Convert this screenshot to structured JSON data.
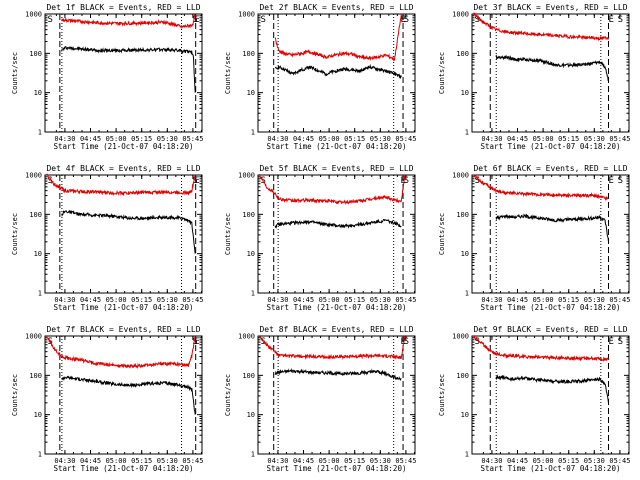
{
  "figure": {
    "x_axis_label": "Start Time (21-Oct-07 04:18:20)",
    "y_axis_label": "Counts/sec",
    "x_tick_labels": [
      "04:30",
      "04:45",
      "05:00",
      "05:15",
      "05:30",
      "05:45"
    ],
    "y_tick_labels": [
      "1",
      "10",
      "100",
      "1000"
    ],
    "event_marks": {
      "S": "S",
      "E": "E"
    },
    "colors": {
      "events": "#000000",
      "lld": "#e00000",
      "markers": "#000000"
    }
  },
  "chart_data": [
    {
      "type": "line",
      "title": "Det 1f BLACK = Events, RED = LLD",
      "xlabel": "Start Time (21-Oct-07 04:18:20)",
      "ylabel": "Counts/sec",
      "x_unit": "minutes after 04:18:20",
      "xlim": [
        0,
        92
      ],
      "ylim": [
        1,
        1000
      ],
      "y_scale": "log",
      "markers": {
        "dashed": [
          8.7,
          88.3
        ],
        "dotted": [
          9.9,
          80.0
        ],
        "S_at": 1.5,
        "E_at": 87.5,
        "S2_at": 91
      },
      "series": [
        {
          "name": "Events",
          "color": "#000000",
          "x": [
            9.8,
            12,
            20,
            30,
            40,
            50,
            60,
            70,
            77,
            80,
            84,
            86,
            87,
            88
          ],
          "y": [
            120,
            140,
            130,
            120,
            118,
            120,
            122,
            125,
            120,
            115,
            110,
            105,
            80,
            10
          ]
        },
        {
          "name": "LLD",
          "color": "#e00000",
          "x": [
            9.8,
            12,
            20,
            30,
            40,
            50,
            60,
            70,
            77,
            80,
            84,
            86,
            87,
            88
          ],
          "y": [
            700,
            700,
            650,
            600,
            580,
            580,
            600,
            620,
            520,
            470,
            500,
            520,
            600,
            1000
          ]
        }
      ]
    },
    {
      "type": "line",
      "title": "Det 2f BLACK = Events, RED = LLD",
      "xlabel": "Start Time (21-Oct-07 04:18:20)",
      "ylabel": "Counts/sec",
      "x_unit": "minutes after 04:18:20",
      "xlim": [
        0,
        92
      ],
      "ylim": [
        1,
        1000
      ],
      "y_scale": "log",
      "markers": {
        "dashed": [
          9.2,
          85.0
        ],
        "dotted": [
          11.8,
          79.5
        ],
        "S_at": 1.5,
        "E_at": 83.5,
        "S2_at": 90
      },
      "series": [
        {
          "name": "Events",
          "color": "#000000",
          "x": [
            10,
            12,
            15,
            20,
            30,
            40,
            45,
            50,
            55,
            60,
            65,
            70,
            75,
            80,
            84
          ],
          "y": [
            40,
            45,
            40,
            30,
            45,
            30,
            35,
            40,
            38,
            35,
            45,
            40,
            35,
            30,
            25
          ]
        },
        {
          "name": "LLD",
          "color": "#e00000",
          "x": [
            10,
            12,
            15,
            20,
            30,
            40,
            45,
            50,
            55,
            60,
            65,
            70,
            75,
            80,
            84
          ],
          "y": [
            250,
            120,
            100,
            90,
            110,
            80,
            90,
            100,
            95,
            80,
            75,
            80,
            90,
            70,
            1000
          ]
        }
      ]
    },
    {
      "type": "line",
      "title": "Det 3f BLACK = Events, RED = LLD",
      "xlabel": "Start Time (21-Oct-07 04:18:20)",
      "ylabel": "Counts/sec",
      "x_unit": "minutes after 04:18:20",
      "xlim": [
        0,
        92
      ],
      "ylim": [
        1,
        1000
      ],
      "y_scale": "log",
      "markers": {
        "dashed": [
          10.7,
          80.0
        ],
        "dotted": [
          14.2,
          75.5
        ],
        "S_at": 1.5,
        "E_at": 80,
        "S2_at": 90
      },
      "series": [
        {
          "name": "Events",
          "color": "#000000",
          "x": [
            14,
            20,
            25,
            30,
            40,
            50,
            60,
            70,
            75,
            78,
            80
          ],
          "y": [
            80,
            80,
            70,
            70,
            65,
            50,
            50,
            55,
            60,
            45,
            20
          ]
        },
        {
          "name": "LLD",
          "color": "#e00000",
          "x": [
            1,
            5,
            10,
            14,
            20,
            30,
            40,
            50,
            60,
            70,
            75,
            80
          ],
          "y": [
            1000,
            700,
            500,
            400,
            350,
            320,
            300,
            280,
            260,
            250,
            240,
            250
          ]
        }
      ]
    },
    {
      "type": "line",
      "title": "Det 4f BLACK = Events, RED = LLD",
      "xlabel": "Start Time (21-Oct-07 04:18:20)",
      "ylabel": "Counts/sec",
      "x_unit": "minutes after 04:18:20",
      "xlim": [
        0,
        92
      ],
      "ylim": [
        1,
        1000
      ],
      "y_scale": "log",
      "markers": {
        "dashed": [
          8.7,
          88.3
        ],
        "dotted": [
          9.9,
          80.0
        ],
        "S_at": 1.5,
        "E_at": 87.5,
        "S2_at": 91
      },
      "series": [
        {
          "name": "Events",
          "color": "#000000",
          "x": [
            9.8,
            12,
            20,
            30,
            40,
            50,
            60,
            70,
            80,
            84,
            86,
            88
          ],
          "y": [
            100,
            120,
            100,
            95,
            90,
            80,
            80,
            85,
            80,
            70,
            60,
            10
          ]
        },
        {
          "name": "LLD",
          "color": "#e00000",
          "x": [
            1,
            5,
            9.8,
            12,
            20,
            30,
            40,
            50,
            60,
            70,
            80,
            84,
            86,
            88
          ],
          "y": [
            1000,
            600,
            450,
            400,
            380,
            370,
            350,
            350,
            360,
            370,
            360,
            350,
            400,
            1000
          ]
        }
      ]
    },
    {
      "type": "line",
      "title": "Det 5f BLACK = Events, RED = LLD",
      "xlabel": "Start Time (21-Oct-07 04:18:20)",
      "ylabel": "Counts/sec",
      "x_unit": "minutes after 04:18:20",
      "xlim": [
        0,
        92
      ],
      "ylim": [
        1,
        1000
      ],
      "y_scale": "log",
      "markers": {
        "dashed": [
          9.2,
          85.0
        ],
        "dotted": [
          11.8,
          79.5
        ],
        "S_at": 1.5,
        "E_at": 83.5,
        "S2_at": 90
      },
      "series": [
        {
          "name": "Events",
          "color": "#000000",
          "x": [
            10,
            12,
            20,
            30,
            40,
            50,
            60,
            70,
            75,
            80,
            84
          ],
          "y": [
            50,
            55,
            60,
            65,
            55,
            50,
            55,
            65,
            70,
            60,
            50
          ]
        },
        {
          "name": "LLD",
          "color": "#e00000",
          "x": [
            1,
            5,
            10,
            12,
            20,
            30,
            40,
            50,
            60,
            70,
            75,
            80,
            84,
            86
          ],
          "y": [
            1000,
            500,
            350,
            250,
            220,
            230,
            220,
            200,
            220,
            260,
            270,
            230,
            220,
            1000
          ]
        }
      ]
    },
    {
      "type": "line",
      "title": "Det 6f BLACK = Events, RED = LLD",
      "xlabel": "Start Time (21-Oct-07 04:18:20)",
      "ylabel": "Counts/sec",
      "x_unit": "minutes after 04:18:20",
      "xlim": [
        0,
        92
      ],
      "ylim": [
        1,
        1000
      ],
      "y_scale": "log",
      "markers": {
        "dashed": [
          10.7,
          80.0
        ],
        "dotted": [
          14.2,
          75.5
        ],
        "S_at": 1.5,
        "E_at": 80,
        "S2_at": 90
      },
      "series": [
        {
          "name": "Events",
          "color": "#000000",
          "x": [
            14,
            20,
            25,
            30,
            40,
            50,
            60,
            70,
            75,
            78,
            80
          ],
          "y": [
            80,
            90,
            85,
            90,
            80,
            70,
            75,
            80,
            85,
            70,
            20
          ]
        },
        {
          "name": "LLD",
          "color": "#e00000",
          "x": [
            1,
            5,
            10,
            14,
            20,
            30,
            40,
            50,
            60,
            70,
            75,
            80
          ],
          "y": [
            1000,
            700,
            500,
            400,
            350,
            330,
            320,
            310,
            300,
            300,
            280,
            250
          ]
        }
      ]
    },
    {
      "type": "line",
      "title": "Det 7f BLACK = Events, RED = LLD",
      "xlabel": "Start Time (21-Oct-07 04:18:20)",
      "ylabel": "Counts/sec",
      "x_unit": "minutes after 04:18:20",
      "xlim": [
        0,
        92
      ],
      "ylim": [
        1,
        1000
      ],
      "y_scale": "log",
      "markers": {
        "dashed": [
          8.7,
          88.3
        ],
        "dotted": [
          9.9,
          80.0
        ],
        "S_at": 1.5,
        "E_at": 87.5,
        "S2_at": 91
      },
      "series": [
        {
          "name": "Events",
          "color": "#000000",
          "x": [
            9.8,
            12,
            20,
            30,
            40,
            50,
            60,
            70,
            80,
            84,
            86,
            88
          ],
          "y": [
            80,
            90,
            80,
            70,
            60,
            55,
            60,
            65,
            55,
            50,
            45,
            10
          ]
        },
        {
          "name": "LLD",
          "color": "#e00000",
          "x": [
            1,
            5,
            9.8,
            12,
            20,
            30,
            40,
            50,
            60,
            70,
            80,
            84,
            86,
            88
          ],
          "y": [
            1000,
            500,
            300,
            280,
            250,
            200,
            180,
            170,
            180,
            200,
            190,
            180,
            300,
            1000
          ]
        }
      ]
    },
    {
      "type": "line",
      "title": "Det 8f BLACK = Events, RED = LLD",
      "xlabel": "Start Time (21-Oct-07 04:18:20)",
      "ylabel": "Counts/sec",
      "x_unit": "minutes after 04:18:20",
      "xlim": [
        0,
        92
      ],
      "ylim": [
        1,
        1000
      ],
      "y_scale": "log",
      "markers": {
        "dashed": [
          9.2,
          85.0
        ],
        "dotted": [
          11.8,
          79.5
        ],
        "S_at": 1.5,
        "E_at": 83.5,
        "S2_at": 90
      },
      "series": [
        {
          "name": "Events",
          "color": "#000000",
          "x": [
            10,
            12,
            20,
            30,
            40,
            50,
            60,
            70,
            75,
            80,
            84
          ],
          "y": [
            110,
            120,
            130,
            120,
            115,
            110,
            115,
            125,
            110,
            90,
            80
          ]
        },
        {
          "name": "LLD",
          "color": "#e00000",
          "x": [
            1,
            5,
            10,
            12,
            20,
            30,
            40,
            50,
            60,
            70,
            75,
            80,
            84,
            86
          ],
          "y": [
            1000,
            600,
            400,
            320,
            310,
            300,
            290,
            300,
            310,
            320,
            310,
            300,
            280,
            1000
          ]
        }
      ]
    },
    {
      "type": "line",
      "title": "Det 9f BLACK = Events, RED = LLD",
      "xlabel": "Start Time (21-Oct-07 04:18:20)",
      "ylabel": "Counts/sec",
      "x_unit": "minutes after 04:18:20",
      "xlim": [
        0,
        92
      ],
      "ylim": [
        1,
        1000
      ],
      "y_scale": "log",
      "markers": {
        "dashed": [
          10.7,
          80.0
        ],
        "dotted": [
          14.2,
          75.5
        ],
        "S_at": 1.5,
        "E_at": 80,
        "S2_at": 90
      },
      "series": [
        {
          "name": "Events",
          "color": "#000000",
          "x": [
            14,
            20,
            25,
            30,
            40,
            50,
            60,
            70,
            75,
            78,
            80
          ],
          "y": [
            90,
            85,
            80,
            85,
            75,
            70,
            70,
            75,
            80,
            60,
            20
          ]
        },
        {
          "name": "LLD",
          "color": "#e00000",
          "x": [
            1,
            5,
            10,
            14,
            20,
            30,
            40,
            50,
            60,
            70,
            75,
            80
          ],
          "y": [
            1000,
            700,
            450,
            350,
            320,
            300,
            290,
            280,
            270,
            270,
            260,
            250
          ]
        }
      ]
    }
  ]
}
